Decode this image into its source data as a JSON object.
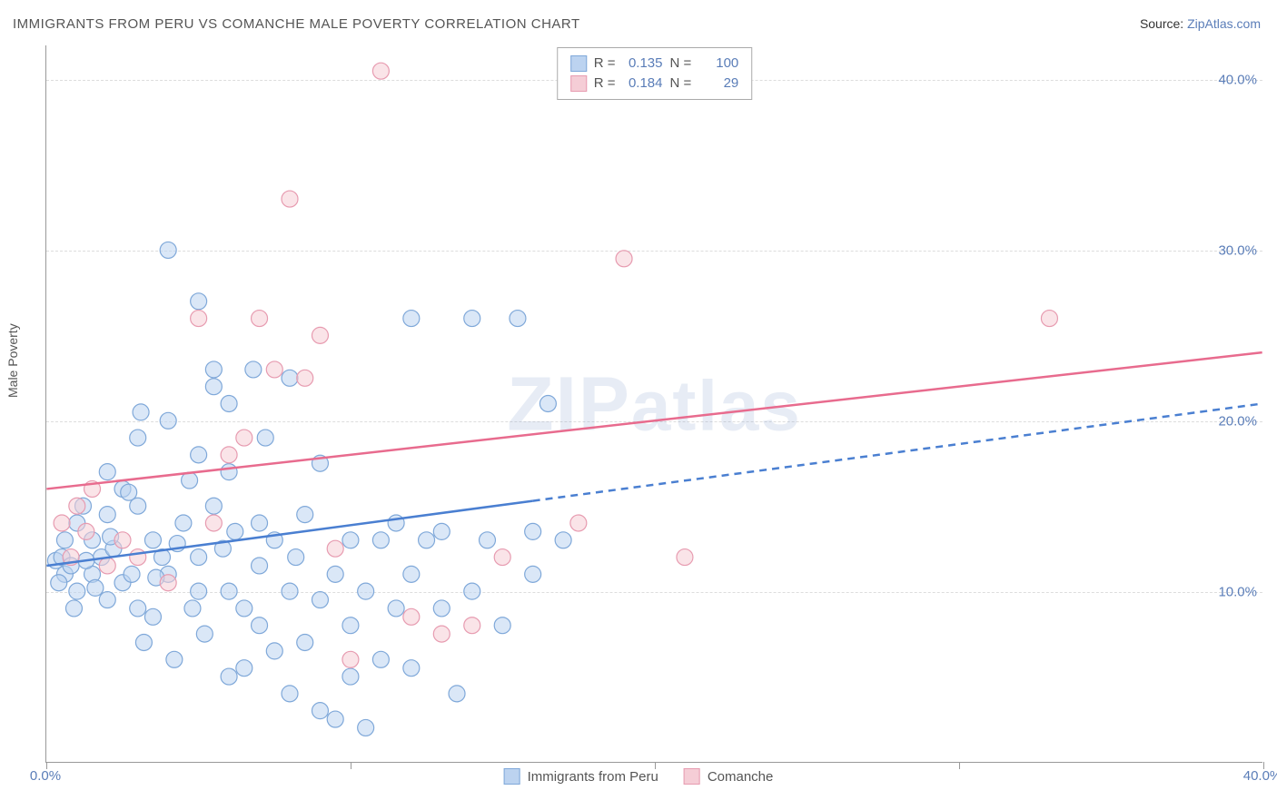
{
  "title": "IMMIGRANTS FROM PERU VS COMANCHE MALE POVERTY CORRELATION CHART",
  "source": {
    "label": "Source: ",
    "value": "ZipAtlas.com"
  },
  "y_axis_label": "Male Poverty",
  "watermark": "ZIPatlas",
  "chart": {
    "type": "scatter",
    "x_domain": [
      0,
      40
    ],
    "y_domain": [
      0,
      42
    ],
    "x_ticks": [
      0,
      10,
      20,
      30,
      40
    ],
    "x_tick_labels": [
      "0.0%",
      "",
      "",
      "",
      "40.0%"
    ],
    "y_ticks": [
      10,
      20,
      30,
      40
    ],
    "y_tick_labels": [
      "10.0%",
      "20.0%",
      "30.0%",
      "40.0%"
    ],
    "grid_color": "#dddddd",
    "axis_color": "#999999",
    "background_color": "#ffffff",
    "label_color": "#5a7db8",
    "axis_label_color": "#555555",
    "marker_radius": 9,
    "marker_opacity": 0.55,
    "line_width": 2.5
  },
  "series": [
    {
      "key": "peru",
      "label": "Immigrants from Peru",
      "color_fill": "#bcd3f0",
      "color_stroke": "#7fa8d9",
      "line_color": "#4a7fd1",
      "R": "0.135",
      "N": "100",
      "trend": {
        "x1": 0,
        "y1": 11.5,
        "x2": 40,
        "y2": 21,
        "solid_until_x": 16
      },
      "points": [
        [
          0.3,
          11.8
        ],
        [
          0.5,
          12
        ],
        [
          0.6,
          11
        ],
        [
          0.8,
          11.5
        ],
        [
          1,
          14
        ],
        [
          1,
          10
        ],
        [
          1.2,
          15
        ],
        [
          1.5,
          13
        ],
        [
          1.5,
          11
        ],
        [
          1.8,
          12
        ],
        [
          2,
          9.5
        ],
        [
          2,
          14.5
        ],
        [
          2,
          17
        ],
        [
          2.2,
          12.5
        ],
        [
          2.5,
          10.5
        ],
        [
          2.5,
          16
        ],
        [
          2.8,
          11
        ],
        [
          3,
          9
        ],
        [
          3,
          15
        ],
        [
          3,
          19
        ],
        [
          3.2,
          7
        ],
        [
          3.5,
          13
        ],
        [
          3.5,
          8.5
        ],
        [
          3.8,
          12
        ],
        [
          4,
          11
        ],
        [
          4,
          20
        ],
        [
          4,
          30
        ],
        [
          4.2,
          6
        ],
        [
          4.5,
          14
        ],
        [
          4.8,
          9
        ],
        [
          5,
          27
        ],
        [
          5,
          18
        ],
        [
          5,
          12
        ],
        [
          5,
          10
        ],
        [
          5.2,
          7.5
        ],
        [
          5.5,
          22
        ],
        [
          5.5,
          23
        ],
        [
          5.5,
          15
        ],
        [
          5.8,
          12.5
        ],
        [
          6,
          5
        ],
        [
          6,
          10
        ],
        [
          6,
          17
        ],
        [
          6,
          21
        ],
        [
          6.2,
          13.5
        ],
        [
          6.5,
          9
        ],
        [
          6.5,
          5.5
        ],
        [
          6.8,
          23
        ],
        [
          7,
          8
        ],
        [
          7,
          14
        ],
        [
          7,
          11.5
        ],
        [
          7.2,
          19
        ],
        [
          7.5,
          6.5
        ],
        [
          7.5,
          13
        ],
        [
          8,
          10
        ],
        [
          8,
          22.5
        ],
        [
          8,
          4
        ],
        [
          8.2,
          12
        ],
        [
          8.5,
          14.5
        ],
        [
          8.5,
          7
        ],
        [
          9,
          17.5
        ],
        [
          9,
          3
        ],
        [
          9,
          9.5
        ],
        [
          9.5,
          2.5
        ],
        [
          9.5,
          11
        ],
        [
          10,
          8
        ],
        [
          10,
          5
        ],
        [
          10,
          13
        ],
        [
          10.5,
          2
        ],
        [
          10.5,
          10
        ],
        [
          11,
          13
        ],
        [
          11,
          6
        ],
        [
          11.5,
          14
        ],
        [
          11.5,
          9
        ],
        [
          12,
          11
        ],
        [
          12,
          26
        ],
        [
          12,
          5.5
        ],
        [
          12.5,
          13
        ],
        [
          13,
          9
        ],
        [
          13,
          13.5
        ],
        [
          13.5,
          4
        ],
        [
          14,
          26
        ],
        [
          14,
          10
        ],
        [
          14.5,
          13
        ],
        [
          15,
          8
        ],
        [
          15.5,
          26
        ],
        [
          16,
          13.5
        ],
        [
          16,
          11
        ],
        [
          16.5,
          21
        ],
        [
          17,
          13
        ],
        [
          0.4,
          10.5
        ],
        [
          0.6,
          13
        ],
        [
          0.9,
          9
        ],
        [
          1.3,
          11.8
        ],
        [
          1.6,
          10.2
        ],
        [
          2.1,
          13.2
        ],
        [
          2.7,
          15.8
        ],
        [
          3.1,
          20.5
        ],
        [
          3.6,
          10.8
        ],
        [
          4.3,
          12.8
        ],
        [
          4.7,
          16.5
        ]
      ]
    },
    {
      "key": "comanche",
      "label": "Comanche",
      "color_fill": "#f5cdd6",
      "color_stroke": "#e79bb0",
      "line_color": "#e86b8e",
      "R": "0.184",
      "N": "29",
      "trend": {
        "x1": 0,
        "y1": 16,
        "x2": 40,
        "y2": 24,
        "solid_until_x": 40
      },
      "points": [
        [
          0.5,
          14
        ],
        [
          0.8,
          12
        ],
        [
          1,
          15
        ],
        [
          1.3,
          13.5
        ],
        [
          1.5,
          16
        ],
        [
          2,
          11.5
        ],
        [
          2.5,
          13
        ],
        [
          3,
          12
        ],
        [
          4,
          10.5
        ],
        [
          5,
          26
        ],
        [
          5.5,
          14
        ],
        [
          6,
          18
        ],
        [
          6.5,
          19
        ],
        [
          7,
          26
        ],
        [
          7.5,
          23
        ],
        [
          8,
          33
        ],
        [
          8.5,
          22.5
        ],
        [
          9,
          25
        ],
        [
          9.5,
          12.5
        ],
        [
          10,
          6
        ],
        [
          11,
          40.5
        ],
        [
          12,
          8.5
        ],
        [
          13,
          7.5
        ],
        [
          14,
          8
        ],
        [
          15,
          12
        ],
        [
          17.5,
          14
        ],
        [
          19,
          29.5
        ],
        [
          21,
          12
        ],
        [
          33,
          26
        ]
      ]
    }
  ],
  "legend_top": {
    "r_label": "R =",
    "n_label": "N ="
  }
}
